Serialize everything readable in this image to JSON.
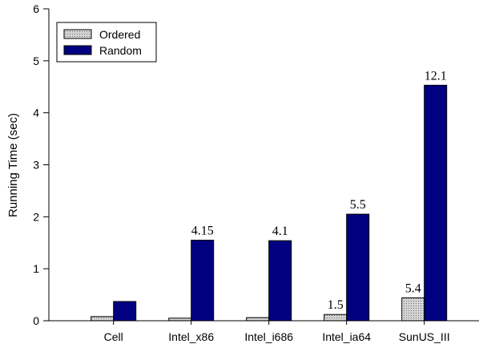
{
  "chart_data": {
    "type": "bar",
    "title": "",
    "xlabel": "",
    "ylabel": "Running Time (sec)",
    "ylim": [
      0,
      6
    ],
    "yticks": [
      "0",
      "1",
      "2",
      "3",
      "4",
      "5",
      "6"
    ],
    "categories": [
      "Cell",
      "Intel_x86",
      "Intel_i686",
      "Intel_ia64",
      "SunUS_III"
    ],
    "series": [
      {
        "name": "Ordered",
        "values": [
          0.08,
          0.05,
          0.06,
          0.12,
          0.44
        ],
        "color": "#c8c8c8",
        "pattern": "dotted"
      },
      {
        "name": "Random",
        "values": [
          0.37,
          1.55,
          1.54,
          2.05,
          4.53
        ],
        "color": "#000080"
      }
    ],
    "annotations": [
      {
        "category": "Intel_x86",
        "series": "Random",
        "text": "4.15"
      },
      {
        "category": "Intel_i686",
        "series": "Random",
        "text": "4.1"
      },
      {
        "category": "Intel_ia64",
        "series": "Ordered",
        "text": "1.5"
      },
      {
        "category": "Intel_ia64",
        "series": "Random",
        "text": "5.5"
      },
      {
        "category": "SunUS_III",
        "series": "Ordered",
        "text": "5.4"
      },
      {
        "category": "SunUS_III",
        "series": "Random",
        "text": "12.1"
      }
    ],
    "grid": false,
    "legend_position": "top-left"
  }
}
